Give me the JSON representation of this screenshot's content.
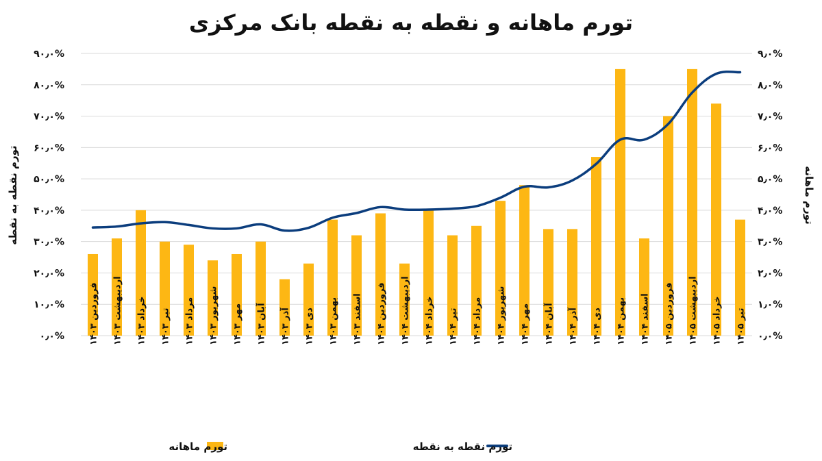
{
  "chart_data": {
    "type": "bar+line",
    "title": "تورم ماهانه و نقطه به نقطه بانک مرکزی",
    "left_axis_label": "تورم نقطه به نقطه",
    "right_axis_label": "تورم ماهانه",
    "left_ylim": [
      0,
      90
    ],
    "right_ylim": [
      0,
      9
    ],
    "left_ticks": [
      "۰٫۰%",
      "۱۰٫۰%",
      "۲۰٫۰%",
      "۳۰٫۰%",
      "۴۰٫۰%",
      "۵۰٫۰%",
      "۶۰٫۰%",
      "۷۰٫۰%",
      "۸۰٫۰%",
      "۹۰٫۰%"
    ],
    "right_ticks": [
      "۰٫۰%",
      "۱٫۰%",
      "۲٫۰%",
      "۳٫۰%",
      "۴٫۰%",
      "۵٫۰%",
      "۶٫۰%",
      "۷٫۰%",
      "۸٫۰%",
      "۹٫۰%"
    ],
    "grid": true,
    "legend_position": "bottom",
    "colors": {
      "bar": "#FDB714",
      "line": "#0B3D7D",
      "grid": "#D9D9D9"
    },
    "categories": [
      "فروردین ۱۴۰۳",
      "اردیبهشت ۱۴۰۳",
      "خرداد ۱۴۰۳",
      "تیر ۱۴۰۳",
      "مرداد ۱۴۰۳",
      "شهریور ۱۴۰۳",
      "مهر ۱۴۰۳",
      "آبان ۱۴۰۳",
      "آذر ۱۴۰۳",
      "دی ۱۴۰۳",
      "بهمن ۱۴۰۳",
      "اسفند ۱۴۰۳",
      "فروردین ۱۴۰۴",
      "اردیبهشت ۱۴۰۴",
      "خرداد ۱۴۰۴",
      "تیر ۱۴۰۴",
      "مرداد ۱۴۰۴",
      "شهریور ۱۴۰۴",
      "مهر ۱۴۰۴",
      "آبان ۱۴۰۴",
      "آذر ۱۴۰۴",
      "دی ۱۴۰۴",
      "بهمن ۱۴۰۴",
      "اسفند ۱۴۰۴",
      "فروردین ۱۴۰۵",
      "اردیبهشت ۱۴۰۵",
      "خرداد ۱۴۰۵",
      "تیر ۱۴۰۵"
    ],
    "series": [
      {
        "name": "تورم ماهانه",
        "type": "bar",
        "axis": "right",
        "values": [
          2.6,
          3.1,
          4.0,
          3.0,
          2.9,
          2.4,
          2.6,
          3.0,
          1.8,
          2.3,
          3.7,
          3.2,
          3.9,
          2.3,
          4.0,
          3.2,
          3.5,
          4.3,
          4.8,
          3.4,
          3.4,
          5.7,
          8.5,
          3.1,
          7.0,
          8.5,
          7.4,
          3.7
        ]
      },
      {
        "name": "تورم نقطه به نقطه",
        "type": "line",
        "axis": "left",
        "values": [
          34.5,
          34.8,
          35.8,
          36.2,
          35.3,
          34.2,
          34.2,
          35.5,
          33.5,
          34.4,
          37.6,
          39.1,
          41.0,
          40.2,
          40.2,
          40.5,
          41.3,
          44.0,
          47.5,
          47.3,
          49.5,
          54.8,
          62.5,
          62.5,
          67.5,
          77.5,
          83.5,
          84.0
        ]
      }
    ]
  }
}
